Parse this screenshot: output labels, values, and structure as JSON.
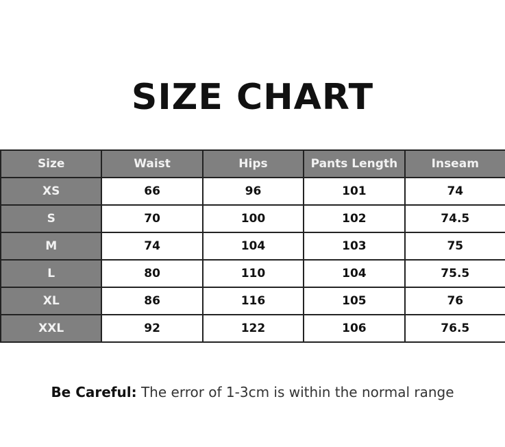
{
  "title": "SIZE CHART",
  "table": {
    "headers": [
      "Size",
      "Waist",
      "Hips",
      "Pants Length",
      "Inseam"
    ],
    "rows": [
      [
        "XS",
        "66",
        "96",
        "101",
        "74"
      ],
      [
        "S",
        "70",
        "100",
        "102",
        "74.5"
      ],
      [
        "M",
        "74",
        "104",
        "103",
        "75"
      ],
      [
        "L",
        "80",
        "110",
        "104",
        "75.5"
      ],
      [
        "XL",
        "86",
        "116",
        "105",
        "76"
      ],
      [
        "XXL",
        "92",
        "122",
        "106",
        "76.5"
      ]
    ]
  },
  "note": {
    "label": "Be Careful:",
    "text": " The error of 1-3cm is within the normal range"
  },
  "colors": {
    "header_bg": "#808080",
    "border": "#222222"
  }
}
